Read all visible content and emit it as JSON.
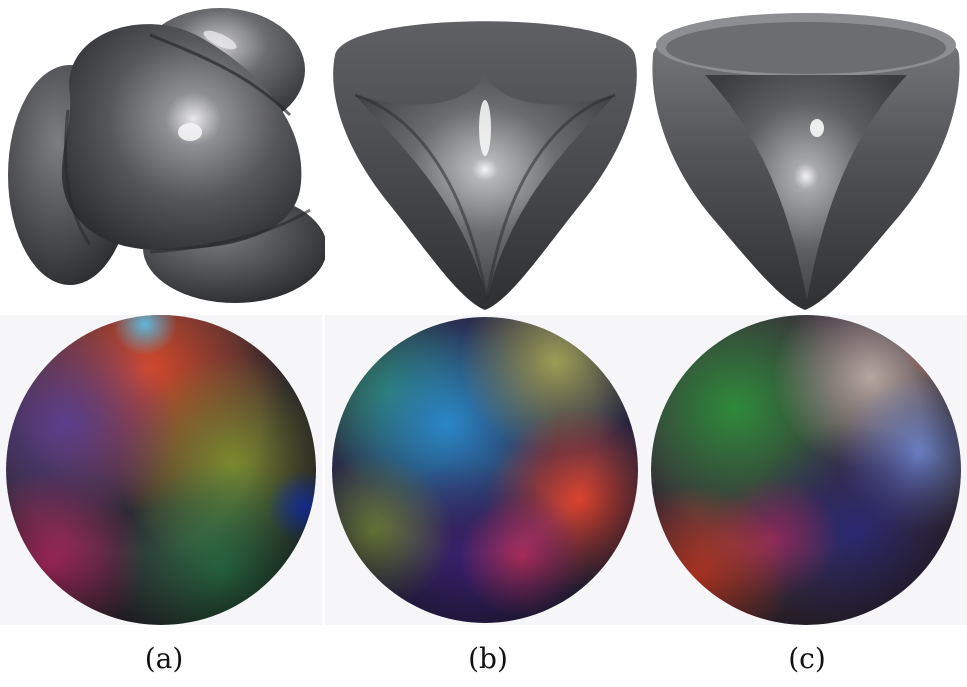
{
  "figure": {
    "panels": [
      {
        "id": "a",
        "caption": "(a)"
      },
      {
        "id": "b",
        "caption": "(b)"
      },
      {
        "id": "c",
        "caption": "(c)"
      }
    ]
  },
  "colors": {
    "background": "#ffffff",
    "surface_dark": "#2f3032",
    "surface_mid": "#5b5c5f",
    "surface_light": "#8e8f92",
    "highlight": "#f2f2f2",
    "sphere_bg": "#f6f6f9"
  }
}
